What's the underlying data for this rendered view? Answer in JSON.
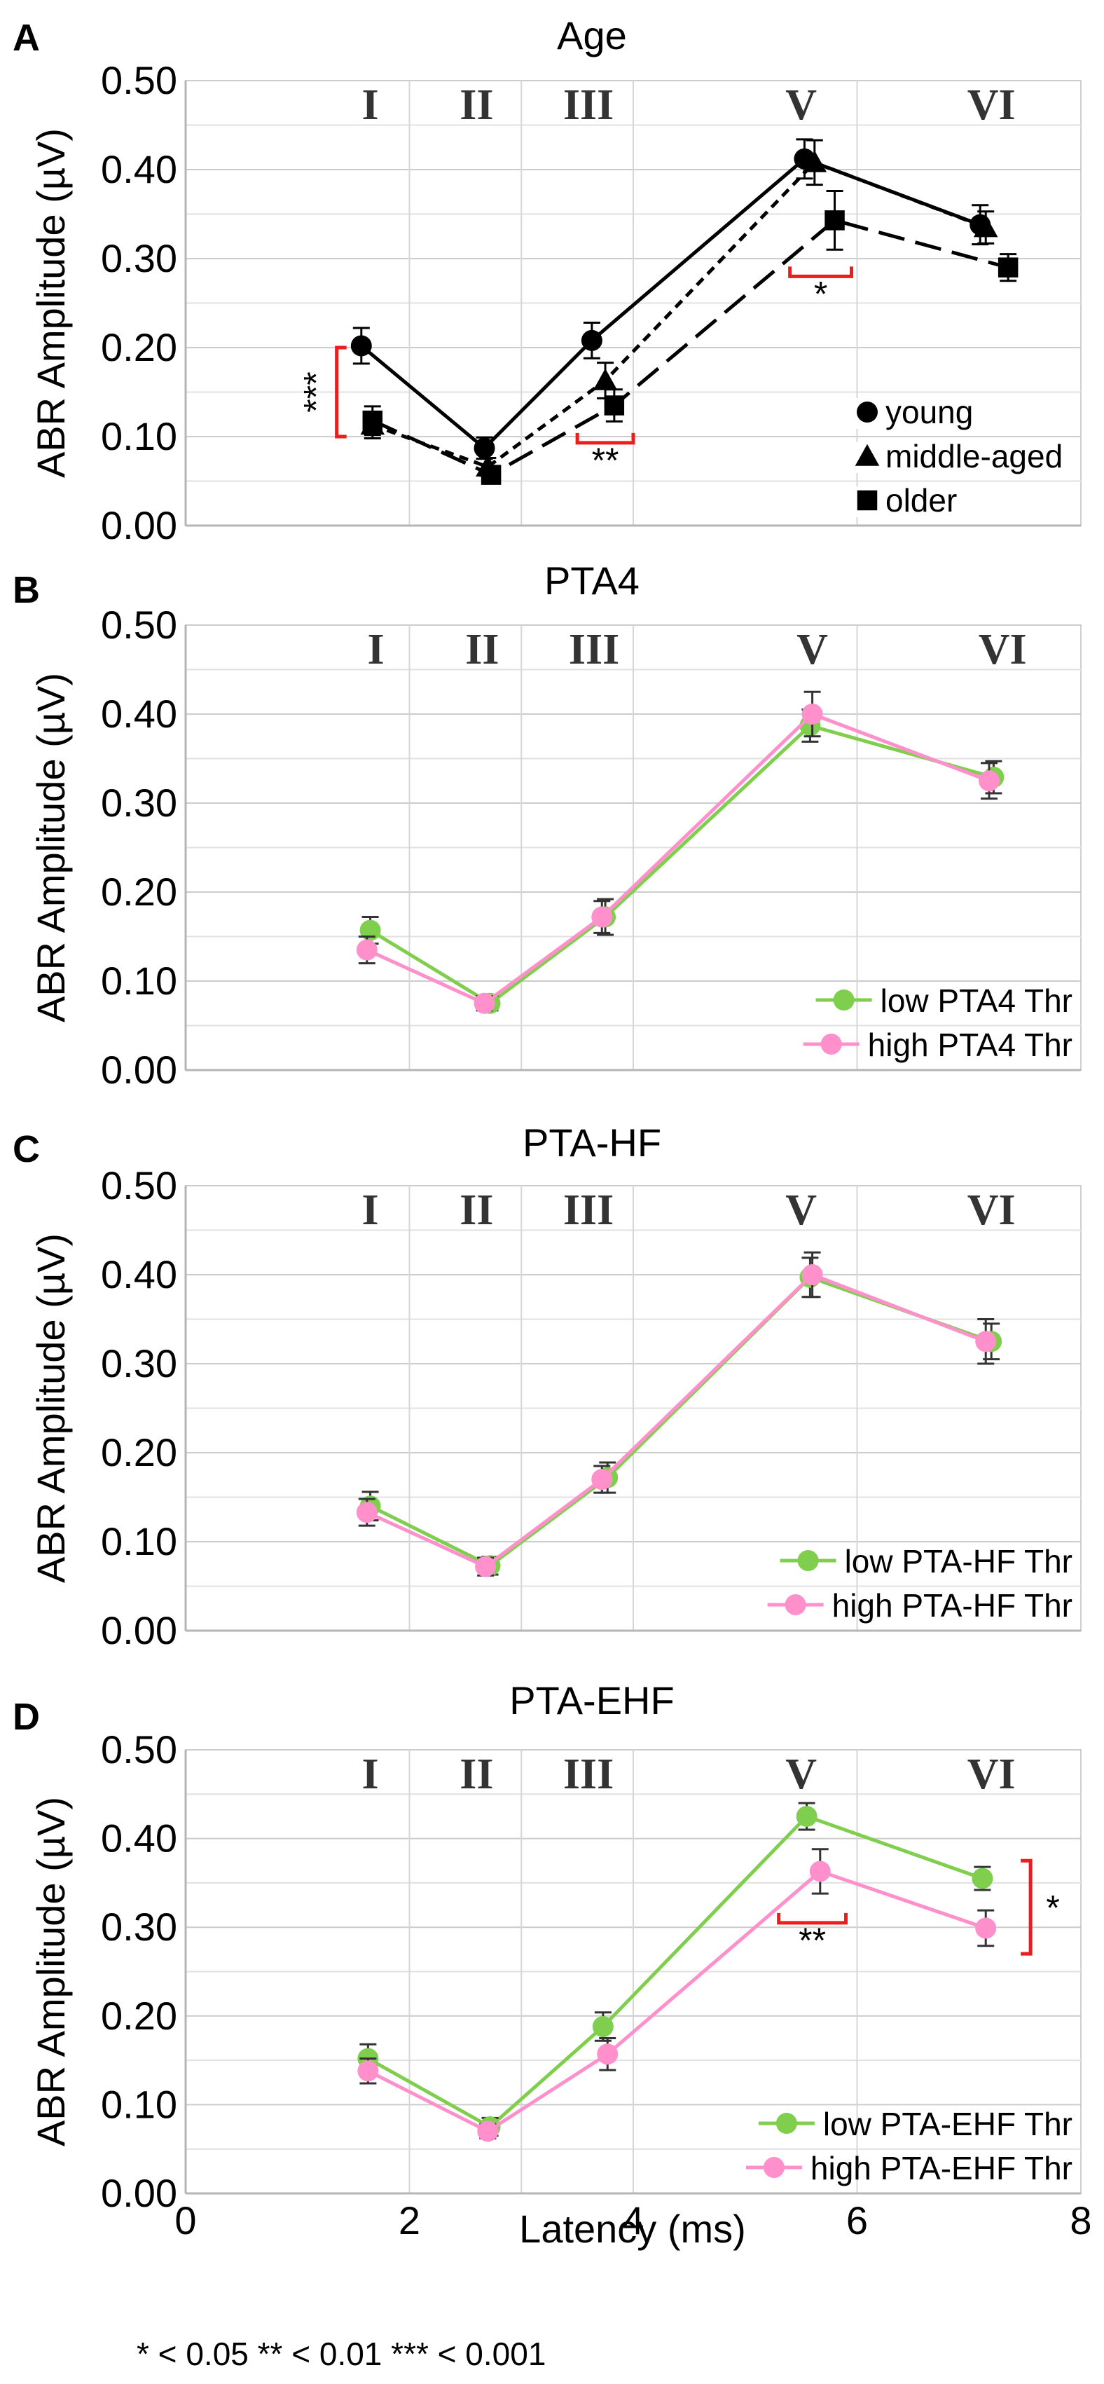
{
  "footnote": "* < 0.05   ** < 0.01  *** < 0.001",
  "x_axis": {
    "label": "Latency (ms)",
    "ticks": [
      "0",
      "2",
      "4",
      "6",
      "8"
    ],
    "xlim": [
      0,
      8
    ]
  },
  "chart_data": [
    {
      "type": "line",
      "letter": "A",
      "title": "Age",
      "ylabel": "ABR Amplitude (µV)",
      "ylim": [
        0,
        0.5
      ],
      "yticks": [
        "0.00",
        "0.10",
        "0.20",
        "0.30",
        "0.40",
        "0.50"
      ],
      "peak_labels": [
        {
          "label": "I",
          "x": 1.65
        },
        {
          "label": "II",
          "x": 2.6
        },
        {
          "label": "III",
          "x": 3.6
        },
        {
          "label": "V",
          "x": 5.5
        },
        {
          "label": "VI",
          "x": 7.2
        }
      ],
      "peak_dividers": [
        2.0,
        3.0,
        4.0,
        6.0
      ],
      "series": [
        {
          "name": "young",
          "marker": "circle",
          "color": "#000000",
          "dash": "solid",
          "x": [
            1.57,
            2.67,
            3.63,
            5.53,
            7.1
          ],
          "y": [
            0.202,
            0.087,
            0.208,
            0.412,
            0.338
          ],
          "err": [
            0.02,
            0.012,
            0.02,
            0.022,
            0.022
          ]
        },
        {
          "name": "middle-aged",
          "marker": "triangle",
          "color": "#000000",
          "dash": "short",
          "x": [
            1.67,
            2.7,
            3.75,
            5.62,
            7.15
          ],
          "y": [
            0.113,
            0.066,
            0.163,
            0.408,
            0.335
          ],
          "err": [
            0.015,
            0.01,
            0.02,
            0.025,
            0.018
          ]
        },
        {
          "name": "older",
          "marker": "square",
          "color": "#000000",
          "dash": "long",
          "x": [
            1.67,
            2.73,
            3.83,
            5.8,
            7.35
          ],
          "y": [
            0.118,
            0.057,
            0.135,
            0.343,
            0.29
          ],
          "err": [
            0.016,
            0.008,
            0.018,
            0.033,
            0.015
          ]
        }
      ],
      "significance": [
        {
          "stars": "***",
          "orientation": "vertical",
          "x": 1.35,
          "y_range": [
            0.1,
            0.2
          ]
        },
        {
          "stars": "**",
          "orientation": "horizontal",
          "x_range": [
            3.5,
            4.0
          ],
          "y": 0.093
        },
        {
          "stars": "*",
          "orientation": "horizontal",
          "x_range": [
            5.4,
            5.95
          ],
          "y": 0.28
        }
      ]
    },
    {
      "type": "line",
      "letter": "B",
      "title": "PTA4",
      "ylabel": "ABR Amplitude (µV)",
      "ylim": [
        0,
        0.5
      ],
      "yticks": [
        "0.00",
        "0.10",
        "0.20",
        "0.30",
        "0.40",
        "0.50"
      ],
      "peak_labels": [
        {
          "label": "I",
          "x": 1.7
        },
        {
          "label": "II",
          "x": 2.65
        },
        {
          "label": "III",
          "x": 3.65
        },
        {
          "label": "V",
          "x": 5.6
        },
        {
          "label": "VI",
          "x": 7.3
        }
      ],
      "peak_dividers": [
        2.0,
        3.0,
        4.0,
        6.0
      ],
      "series": [
        {
          "name": "low PTA4 Thr",
          "marker": "circle",
          "color": "#7fce4d",
          "dash": "solid",
          "x": [
            1.65,
            2.72,
            3.75,
            5.58,
            7.22
          ],
          "y": [
            0.157,
            0.075,
            0.172,
            0.387,
            0.329
          ],
          "err": [
            0.015,
            0.008,
            0.02,
            0.018,
            0.018
          ]
        },
        {
          "name": "high PTA4 Thr",
          "marker": "circle",
          "color": "#ff90cb",
          "dash": "solid",
          "x": [
            1.62,
            2.67,
            3.72,
            5.6,
            7.18
          ],
          "y": [
            0.135,
            0.075,
            0.172,
            0.4,
            0.325
          ],
          "err": [
            0.015,
            0.008,
            0.018,
            0.025,
            0.02
          ]
        }
      ],
      "significance": []
    },
    {
      "type": "line",
      "letter": "C",
      "title": "PTA-HF",
      "ylabel": "ABR Amplitude (µV)",
      "ylim": [
        0,
        0.5
      ],
      "yticks": [
        "0.00",
        "0.10",
        "0.20",
        "0.30",
        "0.40",
        "0.50"
      ],
      "peak_labels": [
        {
          "label": "I",
          "x": 1.65
        },
        {
          "label": "II",
          "x": 2.6
        },
        {
          "label": "III",
          "x": 3.6
        },
        {
          "label": "V",
          "x": 5.5
        },
        {
          "label": "VI",
          "x": 7.2
        }
      ],
      "peak_dividers": [
        2.0,
        3.0,
        4.0,
        6.0
      ],
      "series": [
        {
          "name": "low PTA-HF Thr",
          "marker": "circle",
          "color": "#7fce4d",
          "dash": "solid",
          "x": [
            1.65,
            2.72,
            3.77,
            5.58,
            7.2
          ],
          "y": [
            0.14,
            0.073,
            0.172,
            0.397,
            0.325
          ],
          "err": [
            0.016,
            0.01,
            0.017,
            0.022,
            0.02
          ]
        },
        {
          "name": "high PTA-HF Thr",
          "marker": "circle",
          "color": "#ff90cb",
          "dash": "solid",
          "x": [
            1.62,
            2.68,
            3.72,
            5.6,
            7.15
          ],
          "y": [
            0.133,
            0.072,
            0.17,
            0.4,
            0.325
          ],
          "err": [
            0.015,
            0.01,
            0.015,
            0.025,
            0.025
          ]
        }
      ],
      "significance": []
    },
    {
      "type": "line",
      "letter": "D",
      "title": "PTA-EHF",
      "ylabel": "ABR Amplitude (µV)",
      "ylim": [
        0,
        0.5
      ],
      "yticks": [
        "0.00",
        "0.10",
        "0.20",
        "0.30",
        "0.40",
        "0.50"
      ],
      "peak_labels": [
        {
          "label": "I",
          "x": 1.65
        },
        {
          "label": "II",
          "x": 2.6
        },
        {
          "label": "III",
          "x": 3.6
        },
        {
          "label": "V",
          "x": 5.5
        },
        {
          "label": "VI",
          "x": 7.2
        }
      ],
      "peak_dividers": [
        2.0,
        3.0,
        4.0,
        6.0
      ],
      "series": [
        {
          "name": "low PTA-EHF Thr",
          "marker": "circle",
          "color": "#7fce4d",
          "dash": "solid",
          "x": [
            1.63,
            2.72,
            3.73,
            5.55,
            7.12
          ],
          "y": [
            0.152,
            0.075,
            0.188,
            0.425,
            0.355
          ],
          "err": [
            0.016,
            0.01,
            0.016,
            0.015,
            0.013
          ]
        },
        {
          "name": "high PTA-EHF Thr",
          "marker": "circle",
          "color": "#ff90cb",
          "dash": "solid",
          "x": [
            1.63,
            2.7,
            3.77,
            5.67,
            7.15
          ],
          "y": [
            0.138,
            0.07,
            0.157,
            0.363,
            0.299
          ],
          "err": [
            0.014,
            0.008,
            0.018,
            0.025,
            0.02
          ]
        }
      ],
      "significance": [
        {
          "stars": "**",
          "orientation": "horizontal",
          "x_range": [
            5.3,
            5.9
          ],
          "y": 0.305
        },
        {
          "stars": "*",
          "orientation": "vertical",
          "x": 7.55,
          "y_range": [
            0.27,
            0.375
          ]
        }
      ]
    }
  ]
}
